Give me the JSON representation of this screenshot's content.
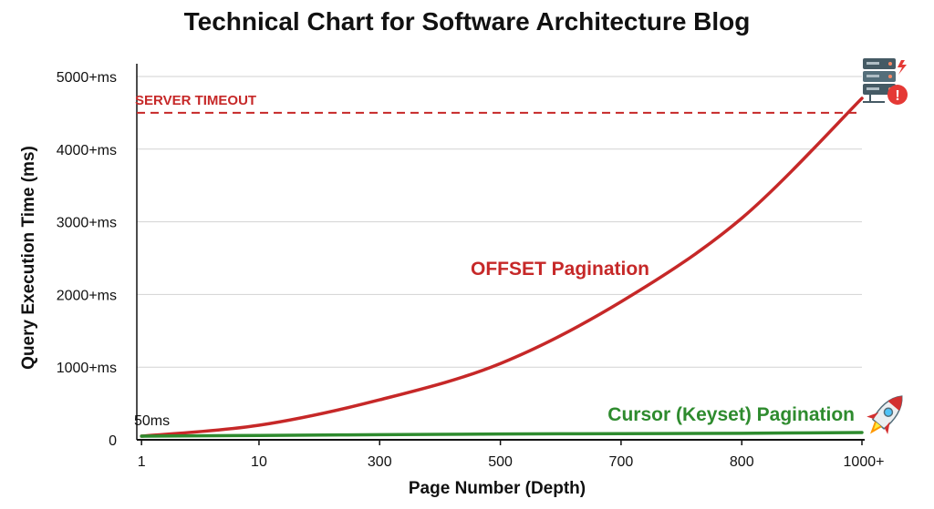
{
  "chart_data": {
    "type": "line",
    "title": "Technical Chart for Software Architecture Blog",
    "xlabel": "Page Number (Depth)",
    "ylabel": "Query Execution Time (ms)",
    "categories": [
      "1",
      "10",
      "300",
      "500",
      "700",
      "800",
      "1000+"
    ],
    "y_ticks": [
      "0",
      "1000+ms",
      "2000+ms",
      "3000+ms",
      "4000+ms",
      "5000+ms"
    ],
    "ylim": [
      0,
      5000
    ],
    "grid": "horizontal",
    "series": [
      {
        "name": "OFFSET Pagination",
        "color": "#c62828",
        "values": [
          50,
          200,
          550,
          1050,
          1900,
          3050,
          4700
        ]
      },
      {
        "name": "Cursor (Keyset) Pagination",
        "color": "#2e8b2e",
        "values": [
          50,
          60,
          70,
          80,
          85,
          90,
          100
        ]
      }
    ],
    "threshold": {
      "label": "SERVER TIMEOUT",
      "value": 4500,
      "color": "#c62828"
    },
    "annotations": [
      {
        "text": "50ms"
      }
    ],
    "icons": [
      "server-alert-icon",
      "rocket-icon"
    ]
  }
}
